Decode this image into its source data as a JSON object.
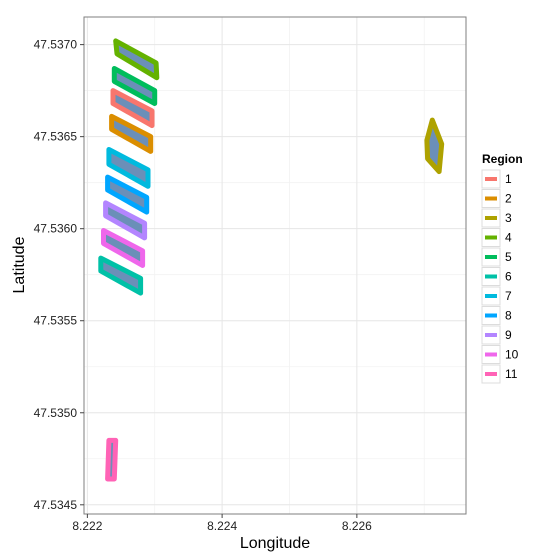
{
  "chart_data": {
    "type": "polygon-map",
    "xlabel": "Longitude",
    "ylabel": "Latitude",
    "xlim": [
      8.22195,
      8.22762
    ],
    "ylim": [
      47.53445,
      47.53715
    ],
    "x_ticks": [
      8.222,
      8.224,
      8.226
    ],
    "x_tick_labels": [
      "8.222",
      "8.224",
      "8.226"
    ],
    "y_ticks": [
      47.5345,
      47.535,
      47.5355,
      47.536,
      47.5365,
      47.537
    ],
    "y_tick_labels": [
      "47.5345",
      "47.5350",
      "47.5355",
      "47.5360",
      "47.5365",
      "47.5370"
    ],
    "grid": true,
    "legend": {
      "title": "Region",
      "placement": "right",
      "entries": [
        "1",
        "2",
        "3",
        "4",
        "5",
        "6",
        "7",
        "8",
        "9",
        "10",
        "11"
      ],
      "colors": [
        "#F8766D",
        "#DB8E00",
        "#AEA200",
        "#64B200",
        "#00BD5C",
        "#00C1A7",
        "#00BADE",
        "#00A6FF",
        "#B385FF",
        "#EF67EB",
        "#FF63B6"
      ]
    },
    "fill_color": "#6B8FB8",
    "regions": [
      {
        "name": "4",
        "polygon": [
          [
            8.22242,
            47.53702
          ],
          [
            8.22302,
            47.5369
          ],
          [
            8.22303,
            47.53682
          ],
          [
            8.22244,
            47.53695
          ]
        ]
      },
      {
        "name": "5",
        "polygon": [
          [
            8.2224,
            47.53687
          ],
          [
            8.223,
            47.53675
          ],
          [
            8.223,
            47.53668
          ],
          [
            8.2224,
            47.5368
          ]
        ]
      },
      {
        "name": "1",
        "polygon": [
          [
            8.22238,
            47.53675
          ],
          [
            8.22296,
            47.53664
          ],
          [
            8.22296,
            47.53656
          ],
          [
            8.22238,
            47.53668
          ]
        ]
      },
      {
        "name": "2",
        "polygon": [
          [
            8.22236,
            47.53661
          ],
          [
            8.22294,
            47.5365
          ],
          [
            8.22294,
            47.53642
          ],
          [
            8.22236,
            47.53654
          ]
        ]
      },
      {
        "name": "7",
        "polygon": [
          [
            8.22232,
            47.53643
          ],
          [
            8.2229,
            47.53632
          ],
          [
            8.2229,
            47.53623
          ],
          [
            8.22232,
            47.53635
          ]
        ]
      },
      {
        "name": "8",
        "polygon": [
          [
            8.2223,
            47.53628
          ],
          [
            8.22288,
            47.53617
          ],
          [
            8.22288,
            47.53609
          ],
          [
            8.2223,
            47.53621
          ]
        ]
      },
      {
        "name": "9",
        "polygon": [
          [
            8.22227,
            47.53614
          ],
          [
            8.22285,
            47.53603
          ],
          [
            8.22285,
            47.53595
          ],
          [
            8.22227,
            47.53607
          ]
        ]
      },
      {
        "name": "10",
        "polygon": [
          [
            8.22224,
            47.53599
          ],
          [
            8.22282,
            47.53588
          ],
          [
            8.22282,
            47.5358
          ],
          [
            8.22224,
            47.53592
          ]
        ]
      },
      {
        "name": "6",
        "polygon": [
          [
            8.2222,
            47.53584
          ],
          [
            8.22279,
            47.53573
          ],
          [
            8.22279,
            47.53565
          ],
          [
            8.2222,
            47.53577
          ]
        ]
      },
      {
        "name": "11",
        "polygon": [
          [
            8.22232,
            47.53485
          ],
          [
            8.22242,
            47.53485
          ],
          [
            8.2224,
            47.53464
          ],
          [
            8.2223,
            47.53464
          ]
        ]
      },
      {
        "name": "3",
        "polygon": [
          [
            8.22712,
            47.53659
          ],
          [
            8.22726,
            47.53646
          ],
          [
            8.22722,
            47.53631
          ],
          [
            8.22705,
            47.53638
          ],
          [
            8.22704,
            47.53648
          ]
        ]
      }
    ]
  }
}
